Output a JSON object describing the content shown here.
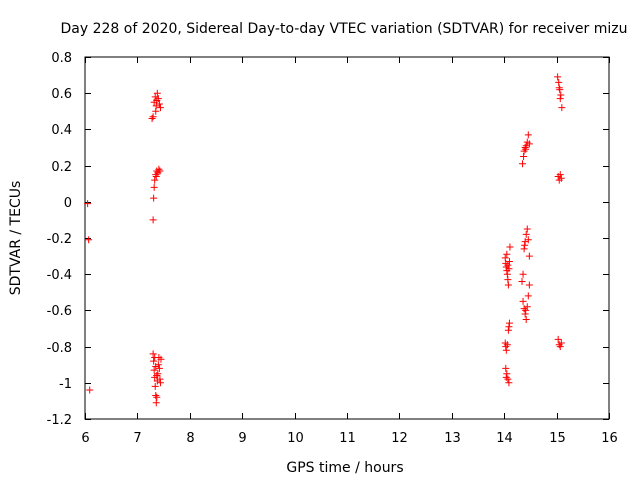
{
  "chart_data": {
    "type": "scatter",
    "title": "Day 228 of 2020, Sidereal Day-to-day VTEC variation (SDTVAR) for receiver mizu",
    "xlabel": "GPS time / hours",
    "ylabel": "SDTVAR / TECUs",
    "xlim": [
      6,
      16
    ],
    "ylim": [
      -1.2,
      0.8
    ],
    "xticks": [
      6,
      7,
      8,
      9,
      10,
      11,
      12,
      13,
      14,
      15,
      16
    ],
    "yticks": [
      -1.2,
      -1,
      -0.8,
      -0.6,
      -0.4,
      -0.2,
      0,
      0.2,
      0.4,
      0.6,
      0.8
    ],
    "grid": false,
    "marker": "+",
    "color": "#ff0000",
    "series": [
      {
        "name": "SDTVAR",
        "points": [
          [
            6.05,
            -0.01
          ],
          [
            6.07,
            -0.21
          ],
          [
            6.09,
            -1.04
          ],
          [
            7.28,
            0.46
          ],
          [
            7.3,
            0.47
          ],
          [
            7.32,
            0.55
          ],
          [
            7.34,
            0.58
          ],
          [
            7.36,
            0.53
          ],
          [
            7.38,
            0.6
          ],
          [
            7.4,
            0.57
          ],
          [
            7.42,
            0.54
          ],
          [
            7.44,
            0.52
          ],
          [
            7.35,
            0.5
          ],
          [
            7.37,
            0.56
          ],
          [
            7.3,
            -0.1
          ],
          [
            7.31,
            0.02
          ],
          [
            7.32,
            0.08
          ],
          [
            7.33,
            0.12
          ],
          [
            7.35,
            0.15
          ],
          [
            7.37,
            0.17
          ],
          [
            7.39,
            0.16
          ],
          [
            7.41,
            0.18
          ],
          [
            7.43,
            0.17
          ],
          [
            7.36,
            0.14
          ],
          [
            7.3,
            -0.84
          ],
          [
            7.31,
            -0.88
          ],
          [
            7.32,
            -0.93
          ],
          [
            7.33,
            -0.97
          ],
          [
            7.34,
            -1.02
          ],
          [
            7.35,
            -1.07
          ],
          [
            7.36,
            -1.11
          ],
          [
            7.37,
            -1.08
          ],
          [
            7.38,
            -0.99
          ],
          [
            7.39,
            -0.95
          ],
          [
            7.4,
            -0.9
          ],
          [
            7.41,
            -0.86
          ],
          [
            7.42,
            -0.92
          ],
          [
            7.43,
            -0.98
          ],
          [
            7.44,
            -1.0
          ],
          [
            7.45,
            -0.87
          ],
          [
            7.33,
            -0.86
          ],
          [
            7.35,
            -0.91
          ],
          [
            7.37,
            -0.96
          ],
          [
            14.02,
            -0.31
          ],
          [
            14.03,
            -0.34
          ],
          [
            14.04,
            -0.36
          ],
          [
            14.05,
            -0.38
          ],
          [
            14.06,
            -0.4
          ],
          [
            14.07,
            -0.43
          ],
          [
            14.08,
            -0.46
          ],
          [
            14.09,
            -0.37
          ],
          [
            14.1,
            -0.33
          ],
          [
            14.11,
            -0.25
          ],
          [
            14.05,
            -0.29
          ],
          [
            14.07,
            -0.35
          ],
          [
            14.02,
            -0.78
          ],
          [
            14.03,
            -0.8
          ],
          [
            14.04,
            -0.82
          ],
          [
            14.06,
            -0.79
          ],
          [
            14.08,
            -0.71
          ],
          [
            14.09,
            -0.69
          ],
          [
            14.1,
            -0.67
          ],
          [
            14.03,
            -0.92
          ],
          [
            14.05,
            -0.95
          ],
          [
            14.07,
            -0.98
          ],
          [
            14.09,
            -1.0
          ],
          [
            14.04,
            -0.97
          ],
          [
            14.35,
            0.21
          ],
          [
            14.37,
            0.25
          ],
          [
            14.38,
            0.28
          ],
          [
            14.4,
            0.3
          ],
          [
            14.42,
            0.31
          ],
          [
            14.44,
            0.33
          ],
          [
            14.46,
            0.37
          ],
          [
            14.48,
            0.32
          ],
          [
            14.41,
            0.29
          ],
          [
            14.34,
            -0.44
          ],
          [
            14.36,
            -0.4
          ],
          [
            14.38,
            -0.26
          ],
          [
            14.4,
            -0.22
          ],
          [
            14.42,
            -0.18
          ],
          [
            14.44,
            -0.15
          ],
          [
            14.46,
            -0.21
          ],
          [
            14.48,
            -0.3
          ],
          [
            14.39,
            -0.24
          ],
          [
            14.36,
            -0.55
          ],
          [
            14.38,
            -0.59
          ],
          [
            14.4,
            -0.62
          ],
          [
            14.42,
            -0.65
          ],
          [
            14.44,
            -0.58
          ],
          [
            14.46,
            -0.52
          ],
          [
            14.48,
            -0.46
          ],
          [
            14.41,
            -0.6
          ],
          [
            15.02,
            0.69
          ],
          [
            15.04,
            0.66
          ],
          [
            15.05,
            0.63
          ],
          [
            15.06,
            0.62
          ],
          [
            15.08,
            0.59
          ],
          [
            15.1,
            0.52
          ],
          [
            15.07,
            0.57
          ],
          [
            15.03,
            0.14
          ],
          [
            15.05,
            0.12
          ],
          [
            15.07,
            0.15
          ],
          [
            15.09,
            0.13
          ],
          [
            15.03,
            -0.76
          ],
          [
            15.05,
            -0.79
          ],
          [
            15.07,
            -0.8
          ],
          [
            15.09,
            -0.78
          ]
        ]
      }
    ]
  }
}
